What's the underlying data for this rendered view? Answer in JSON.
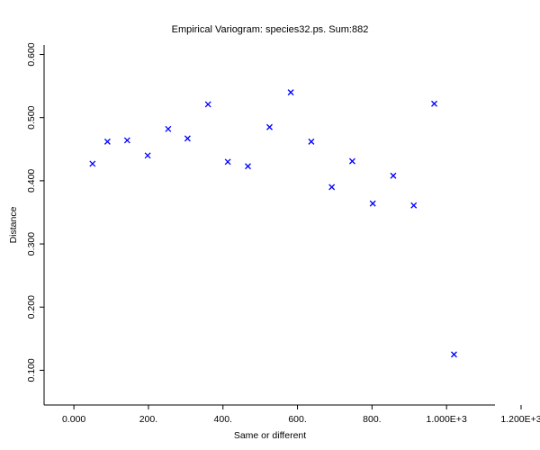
{
  "chart_data": {
    "type": "scatter",
    "title": "Empirical Variogram: species32.ps. Sum:882",
    "xlabel": "Same or different",
    "ylabel": "Distance",
    "xlim": [
      -80,
      1130
    ],
    "ylim": [
      0.045,
      0.615
    ],
    "x_ticks": [
      0,
      200,
      400,
      600,
      800,
      1000,
      1200
    ],
    "x_tick_labels": [
      "0.000",
      "200.",
      "400.",
      "600.",
      "800.",
      "1.000E+3",
      "1.200E+3"
    ],
    "y_ticks": [
      0.1,
      0.2,
      0.3,
      0.4,
      0.5,
      0.6
    ],
    "y_tick_labels": [
      "0.100",
      "0.200",
      "0.300",
      "0.400",
      "0.500",
      "0.600"
    ],
    "marker": "x",
    "color": "#0000ff",
    "grid": false,
    "points": [
      {
        "x": 50,
        "y": 0.427
      },
      {
        "x": 90,
        "y": 0.462
      },
      {
        "x": 143,
        "y": 0.464
      },
      {
        "x": 198,
        "y": 0.44
      },
      {
        "x": 253,
        "y": 0.482
      },
      {
        "x": 305,
        "y": 0.467
      },
      {
        "x": 360,
        "y": 0.521
      },
      {
        "x": 413,
        "y": 0.43
      },
      {
        "x": 467,
        "y": 0.423
      },
      {
        "x": 525,
        "y": 0.485
      },
      {
        "x": 582,
        "y": 0.54
      },
      {
        "x": 637,
        "y": 0.462
      },
      {
        "x": 692,
        "y": 0.39
      },
      {
        "x": 747,
        "y": 0.431
      },
      {
        "x": 802,
        "y": 0.364
      },
      {
        "x": 857,
        "y": 0.408
      },
      {
        "x": 912,
        "y": 0.361
      },
      {
        "x": 967,
        "y": 0.522
      },
      {
        "x": 1020,
        "y": 0.125
      }
    ]
  }
}
